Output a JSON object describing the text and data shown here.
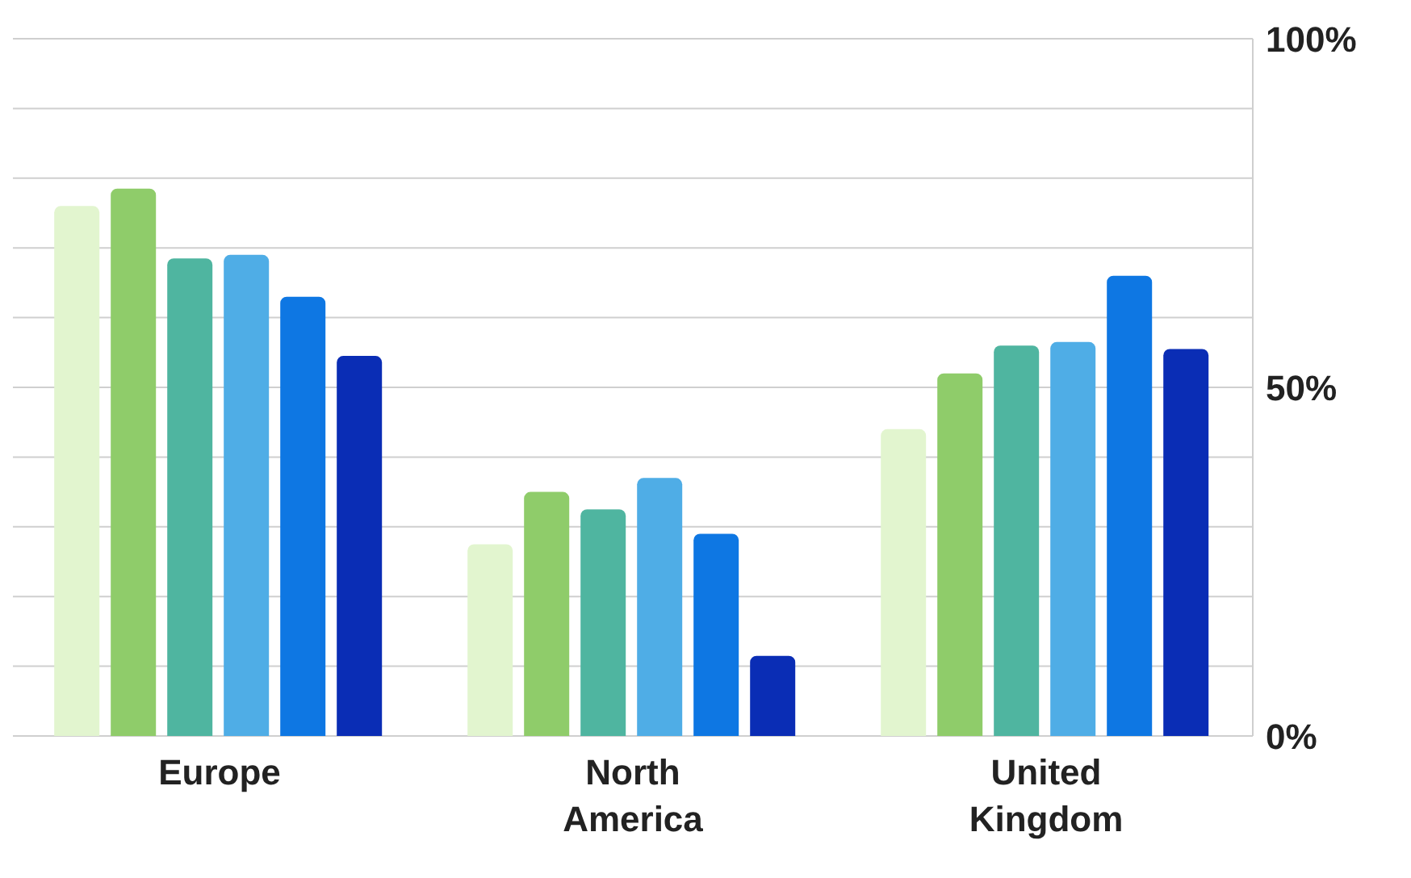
{
  "chart_data": {
    "type": "bar",
    "categories": [
      "Europe",
      "North America",
      "United Kingdom"
    ],
    "series": [
      {
        "color": "#e2f5cf",
        "values": [
          76,
          27.5,
          44
        ]
      },
      {
        "color": "#8fcc6a",
        "values": [
          78.5,
          35,
          52
        ]
      },
      {
        "color": "#4fb5a0",
        "values": [
          68.5,
          32.5,
          56
        ]
      },
      {
        "color": "#4fade6",
        "values": [
          69,
          37,
          56.5
        ]
      },
      {
        "color": "#0e77e3",
        "values": [
          63,
          29,
          66
        ]
      },
      {
        "color": "#0a2db5",
        "values": [
          54.5,
          11.5,
          55.5
        ]
      }
    ],
    "ylim": [
      0,
      100
    ],
    "yticks": [
      {
        "value": 0,
        "label": "0%"
      },
      {
        "value": 10,
        "label": null
      },
      {
        "value": 20,
        "label": null
      },
      {
        "value": 30,
        "label": null
      },
      {
        "value": 40,
        "label": null
      },
      {
        "value": 50,
        "label": "50%"
      },
      {
        "value": 60,
        "label": null
      },
      {
        "value": 70,
        "label": null
      },
      {
        "value": 80,
        "label": null
      },
      {
        "value": 90,
        "label": null
      },
      {
        "value": 100,
        "label": "100%"
      }
    ],
    "grid": "y",
    "legend": false
  }
}
